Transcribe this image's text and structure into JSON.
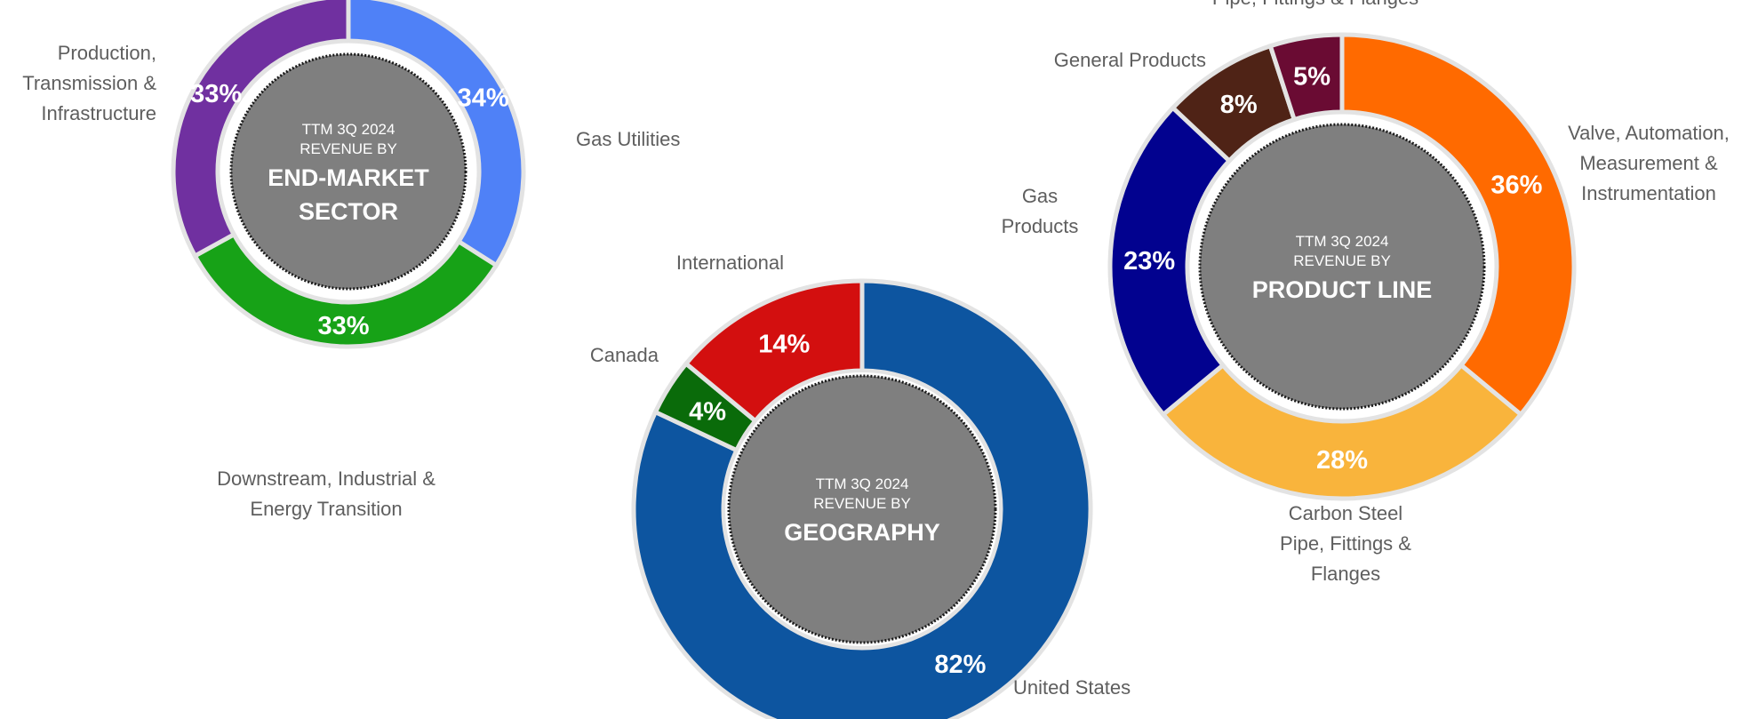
{
  "chart_data": [
    {
      "type": "donut",
      "title_lines": [
        "TTM 3Q 2024",
        "REVENUE BY"
      ],
      "title_big_lines": [
        "END-MARKET",
        "SECTOR"
      ],
      "series": [
        {
          "name": "Gas Utilities",
          "value": 34,
          "label": "34%",
          "color": "#4f81f7"
        },
        {
          "name": "Downstream, Industrial & Energy Transition",
          "value": 33,
          "label": "33%",
          "color": "#17a217"
        },
        {
          "name": "Production, Transmission & Infrastructure",
          "value": 33,
          "label": "33%",
          "color": "#7030a0"
        }
      ],
      "outer_labels": [
        {
          "lines": [
            "Gas Utilities"
          ]
        },
        {
          "lines": [
            "Downstream, Industrial &",
            "Energy Transition"
          ]
        },
        {
          "lines": [
            "Production,",
            "Transmission &",
            "Infrastructure"
          ]
        }
      ]
    },
    {
      "type": "donut",
      "title_lines": [
        "TTM 3Q 2024",
        "REVENUE BY"
      ],
      "title_big_lines": [
        "GEOGRAPHY"
      ],
      "series": [
        {
          "name": "United States",
          "value": 82,
          "label": "82%",
          "color": "#0d55a0"
        },
        {
          "name": "Canada",
          "value": 4,
          "label": "4%",
          "color": "#0a6b0a"
        },
        {
          "name": "International",
          "value": 14,
          "label": "14%",
          "color": "#d30f0f"
        }
      ],
      "outer_labels": [
        {
          "lines": [
            "United States"
          ]
        },
        {
          "lines": [
            "Canada"
          ]
        },
        {
          "lines": [
            "International"
          ]
        }
      ]
    },
    {
      "type": "donut",
      "title_lines": [
        "TTM 3Q 2024",
        "REVENUE BY"
      ],
      "title_big_lines": [
        "PRODUCT LINE"
      ],
      "series": [
        {
          "name": "Valve, Automation, Measurement & Instrumentation",
          "value": 36,
          "label": "36%",
          "color": "#ff6a00"
        },
        {
          "name": "Carbon Steel Pipe, Fittings & Flanges",
          "value": 28,
          "label": "28%",
          "color": "#f9b43c"
        },
        {
          "name": "Gas Products",
          "value": 23,
          "label": "23%",
          "color": "#02028f"
        },
        {
          "name": "General Products",
          "value": 8,
          "label": "8%",
          "color": "#4f2316"
        },
        {
          "name": "Pipe, Fittings & Flanges",
          "value": 5,
          "label": "5%",
          "color": "#6a0b33"
        }
      ],
      "outer_labels": [
        {
          "lines": [
            "Valve, Automation,",
            "Measurement &",
            "Instrumentation"
          ]
        },
        {
          "lines": [
            "Carbon Steel",
            "Pipe, Fittings &",
            "Flanges"
          ]
        },
        {
          "lines": [
            "Gas",
            "Products"
          ]
        },
        {
          "lines": [
            "General Products"
          ]
        },
        {
          "lines": [
            "Pipe, Fittings & Flanges"
          ]
        }
      ]
    }
  ],
  "colors": {
    "center_fill": "#7f7f7f",
    "label_text": "#5e5e5e",
    "segment_gap": "#e3e3e3"
  }
}
